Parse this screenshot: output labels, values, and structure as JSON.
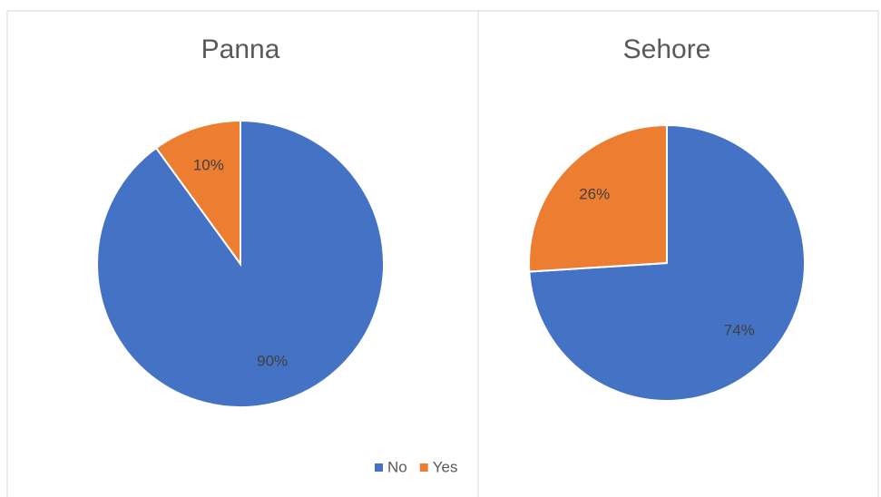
{
  "chart_data": [
    {
      "type": "pie",
      "title": "Panna",
      "categories": [
        "No",
        "Yes"
      ],
      "values": [
        90,
        10
      ],
      "value_labels": [
        "90%",
        "10%"
      ],
      "colors": [
        "#4472c4",
        "#ed7d31"
      ],
      "legend": "bottom"
    },
    {
      "type": "pie",
      "title": "Sehore",
      "values": [
        74,
        26
      ],
      "value_labels": [
        "74%",
        "26%"
      ],
      "colors": [
        "#4472c4",
        "#ed7d31"
      ]
    }
  ]
}
